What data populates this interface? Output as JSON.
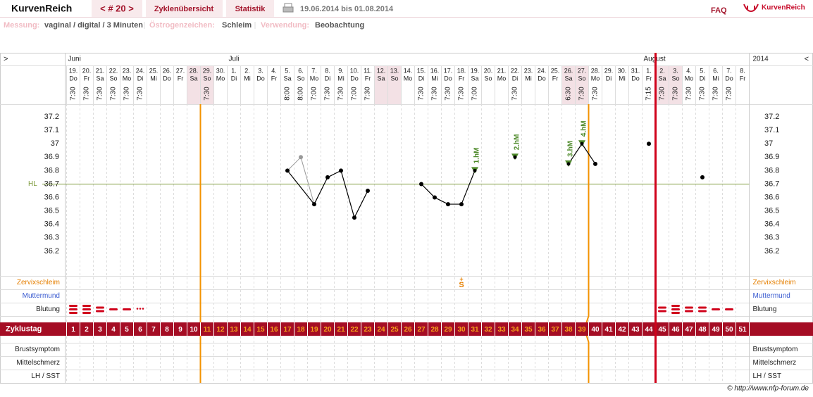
{
  "header": {
    "brand": "KurvenReich",
    "cycle_nav": "< # 20 >",
    "tabs": [
      "Zyklenübersicht",
      "Statistik"
    ],
    "period": "19.06.2014 bis 01.08.2014",
    "faq": "FAQ",
    "logo": "KurvenReich"
  },
  "info": [
    {
      "label": "Messung:",
      "value": "vaginal / digital / 3 Minuten"
    },
    {
      "label": "Östrogenzeichen:",
      "value": "Schleim"
    },
    {
      "label": "Verwendung:",
      "value": "Beobachtung"
    }
  ],
  "chart_data": {
    "type": "cycle",
    "nav_left": ">",
    "nav_right": "<",
    "months": [
      {
        "label": "Juni",
        "cycle_day": 1
      },
      {
        "label": "Juli",
        "cycle_day": 13
      },
      {
        "label": "August",
        "cycle_day": 44
      }
    ],
    "year": "2014",
    "days": [
      {
        "cycle_day": 1,
        "date": "19.",
        "weekday": "Do",
        "time": "7:30"
      },
      {
        "cycle_day": 2,
        "date": "20.",
        "weekday": "Fr",
        "time": "7:30"
      },
      {
        "cycle_day": 3,
        "date": "21.",
        "weekday": "Sa",
        "time": "7:30"
      },
      {
        "cycle_day": 4,
        "date": "22.",
        "weekday": "So",
        "time": "7:30"
      },
      {
        "cycle_day": 5,
        "date": "23.",
        "weekday": "Mo",
        "time": "7:30"
      },
      {
        "cycle_day": 6,
        "date": "24.",
        "weekday": "Di",
        "time": "7:30"
      },
      {
        "cycle_day": 7,
        "date": "25.",
        "weekday": "Mi",
        "time": null
      },
      {
        "cycle_day": 8,
        "date": "26.",
        "weekday": "Do",
        "time": null
      },
      {
        "cycle_day": 9,
        "date": "27.",
        "weekday": "Fr",
        "time": null
      },
      {
        "cycle_day": 10,
        "date": "28.",
        "weekday": "Sa",
        "time": null,
        "shaded": true
      },
      {
        "cycle_day": 11,
        "date": "29.",
        "weekday": "So",
        "time": "7:30",
        "shaded": true
      },
      {
        "cycle_day": 12,
        "date": "30.",
        "weekday": "Mo",
        "time": null
      },
      {
        "cycle_day": 13,
        "date": "1.",
        "weekday": "Di",
        "time": null
      },
      {
        "cycle_day": 14,
        "date": "2.",
        "weekday": "Mi",
        "time": null
      },
      {
        "cycle_day": 15,
        "date": "3.",
        "weekday": "Do",
        "time": null
      },
      {
        "cycle_day": 16,
        "date": "4.",
        "weekday": "Fr",
        "time": null
      },
      {
        "cycle_day": 17,
        "date": "5.",
        "weekday": "Sa",
        "time": "8:00"
      },
      {
        "cycle_day": 18,
        "date": "6.",
        "weekday": "So",
        "time": "8:00"
      },
      {
        "cycle_day": 19,
        "date": "7.",
        "weekday": "Mo",
        "time": "7:00"
      },
      {
        "cycle_day": 20,
        "date": "8.",
        "weekday": "Di",
        "time": "7:30"
      },
      {
        "cycle_day": 21,
        "date": "9.",
        "weekday": "Mi",
        "time": "7:30"
      },
      {
        "cycle_day": 22,
        "date": "10.",
        "weekday": "Do",
        "time": "7:00"
      },
      {
        "cycle_day": 23,
        "date": "11.",
        "weekday": "Fr",
        "time": "7:30"
      },
      {
        "cycle_day": 24,
        "date": "12.",
        "weekday": "Sa",
        "time": null,
        "shaded": true
      },
      {
        "cycle_day": 25,
        "date": "13.",
        "weekday": "So",
        "time": null,
        "shaded": true
      },
      {
        "cycle_day": 26,
        "date": "14.",
        "weekday": "Mo",
        "time": null
      },
      {
        "cycle_day": 27,
        "date": "15.",
        "weekday": "Di",
        "time": "7:30"
      },
      {
        "cycle_day": 28,
        "date": "16.",
        "weekday": "Mi",
        "time": "7:30"
      },
      {
        "cycle_day": 29,
        "date": "17.",
        "weekday": "Do",
        "time": "7:30"
      },
      {
        "cycle_day": 30,
        "date": "18.",
        "weekday": "Fr",
        "time": "7:30"
      },
      {
        "cycle_day": 31,
        "date": "19.",
        "weekday": "Sa",
        "time": "7:00"
      },
      {
        "cycle_day": 32,
        "date": "20.",
        "weekday": "So",
        "time": null
      },
      {
        "cycle_day": 33,
        "date": "21.",
        "weekday": "Mo",
        "time": null
      },
      {
        "cycle_day": 34,
        "date": "22.",
        "weekday": "Di",
        "time": "7:30"
      },
      {
        "cycle_day": 35,
        "date": "23.",
        "weekday": "Mi",
        "time": null
      },
      {
        "cycle_day": 36,
        "date": "24.",
        "weekday": "Do",
        "time": null
      },
      {
        "cycle_day": 37,
        "date": "25.",
        "weekday": "Fr",
        "time": null
      },
      {
        "cycle_day": 38,
        "date": "26.",
        "weekday": "Sa",
        "time": "6:30",
        "shaded": true
      },
      {
        "cycle_day": 39,
        "date": "27.",
        "weekday": "So",
        "time": "7:30",
        "shaded": true
      },
      {
        "cycle_day": 40,
        "date": "28.",
        "weekday": "Mo",
        "time": "7:30"
      },
      {
        "cycle_day": 41,
        "date": "29.",
        "weekday": "Di",
        "time": null
      },
      {
        "cycle_day": 42,
        "date": "30.",
        "weekday": "Mi",
        "time": null
      },
      {
        "cycle_day": 43,
        "date": "31.",
        "weekday": "Do",
        "time": null
      },
      {
        "cycle_day": 44,
        "date": "1.",
        "weekday": "Fr",
        "time": "7:15"
      },
      {
        "cycle_day": 45,
        "date": "2.",
        "weekday": "Sa",
        "time": "7:30",
        "shaded": true
      },
      {
        "cycle_day": 46,
        "date": "3.",
        "weekday": "So",
        "time": "7:30",
        "shaded": true
      },
      {
        "cycle_day": 47,
        "date": "4.",
        "weekday": "Mo",
        "time": "7:30"
      },
      {
        "cycle_day": 48,
        "date": "5.",
        "weekday": "Di",
        "time": "7:30"
      },
      {
        "cycle_day": 49,
        "date": "6.",
        "weekday": "Mi",
        "time": "7:30"
      },
      {
        "cycle_day": 50,
        "date": "7.",
        "weekday": "Do",
        "time": "7:30"
      },
      {
        "cycle_day": 51,
        "date": "8.",
        "weekday": "Fr",
        "time": null
      }
    ],
    "ylim": [
      36,
      37.3
    ],
    "yticks": [
      36.2,
      36.3,
      36.4,
      36.5,
      36.6,
      36.7,
      36.8,
      36.9,
      37,
      37.1,
      37.2
    ],
    "cover_line": {
      "label": "HL",
      "value": 36.7,
      "color": "#7d9a3c"
    },
    "temperature": {
      "color": "#000000",
      "values": [
        null,
        null,
        null,
        null,
        null,
        null,
        null,
        null,
        null,
        null,
        null,
        null,
        null,
        null,
        null,
        null,
        36.8,
        null,
        36.55,
        36.75,
        36.8,
        36.45,
        36.65,
        null,
        null,
        null,
        36.7,
        36.6,
        36.55,
        36.55,
        36.8,
        null,
        null,
        36.9,
        null,
        null,
        null,
        36.85,
        37.0,
        36.85,
        null,
        null,
        null,
        37.0,
        null,
        null,
        null,
        36.75,
        null,
        null,
        null
      ]
    },
    "excluded": {
      "color": "#999999",
      "values": [
        null,
        null,
        null,
        null,
        null,
        null,
        null,
        null,
        null,
        null,
        null,
        null,
        null,
        null,
        null,
        null,
        null,
        36.9,
        null,
        null,
        null,
        null,
        null,
        null,
        null,
        null,
        null,
        null,
        null,
        null,
        null,
        null,
        null,
        null,
        null,
        null,
        null,
        null,
        null,
        null,
        null,
        null,
        null,
        null,
        null,
        null,
        null,
        null,
        null,
        null,
        null
      ]
    },
    "high_marks": {
      "color": "#4e8a2a",
      "marks": [
        {
          "cycle_day": 31,
          "label": "1.hM"
        },
        {
          "cycle_day": 34,
          "label": "2.hM"
        },
        {
          "cycle_day": 38,
          "label": "3.hM"
        },
        {
          "cycle_day": 39,
          "label": "4.hM"
        }
      ]
    },
    "rows": {
      "mucus": "Zervixschleim",
      "cervix": "Muttermund",
      "bleeding": "Blutung",
      "cycle_day": "Zyklustag",
      "breast": "Brustsymptom",
      "pain": "Mittelschmerz",
      "lh": "LH / SST"
    },
    "cervical_mucus": [
      {
        "cycle_day": 30,
        "symbol": "S",
        "modifier": "+"
      }
    ],
    "bleeding": [
      3,
      3,
      2,
      1,
      1,
      "spotting",
      null,
      null,
      null,
      null,
      null,
      null,
      null,
      null,
      null,
      null,
      null,
      null,
      null,
      null,
      null,
      null,
      null,
      null,
      null,
      null,
      null,
      null,
      null,
      null,
      null,
      null,
      null,
      null,
      null,
      null,
      null,
      null,
      null,
      null,
      null,
      null,
      null,
      null,
      2,
      3,
      2,
      2,
      1,
      1,
      null
    ],
    "fertile_window": [
      11,
      39
    ],
    "cycle_start_next": 45
  },
  "footer": "© http://www.nfp-forum.de"
}
